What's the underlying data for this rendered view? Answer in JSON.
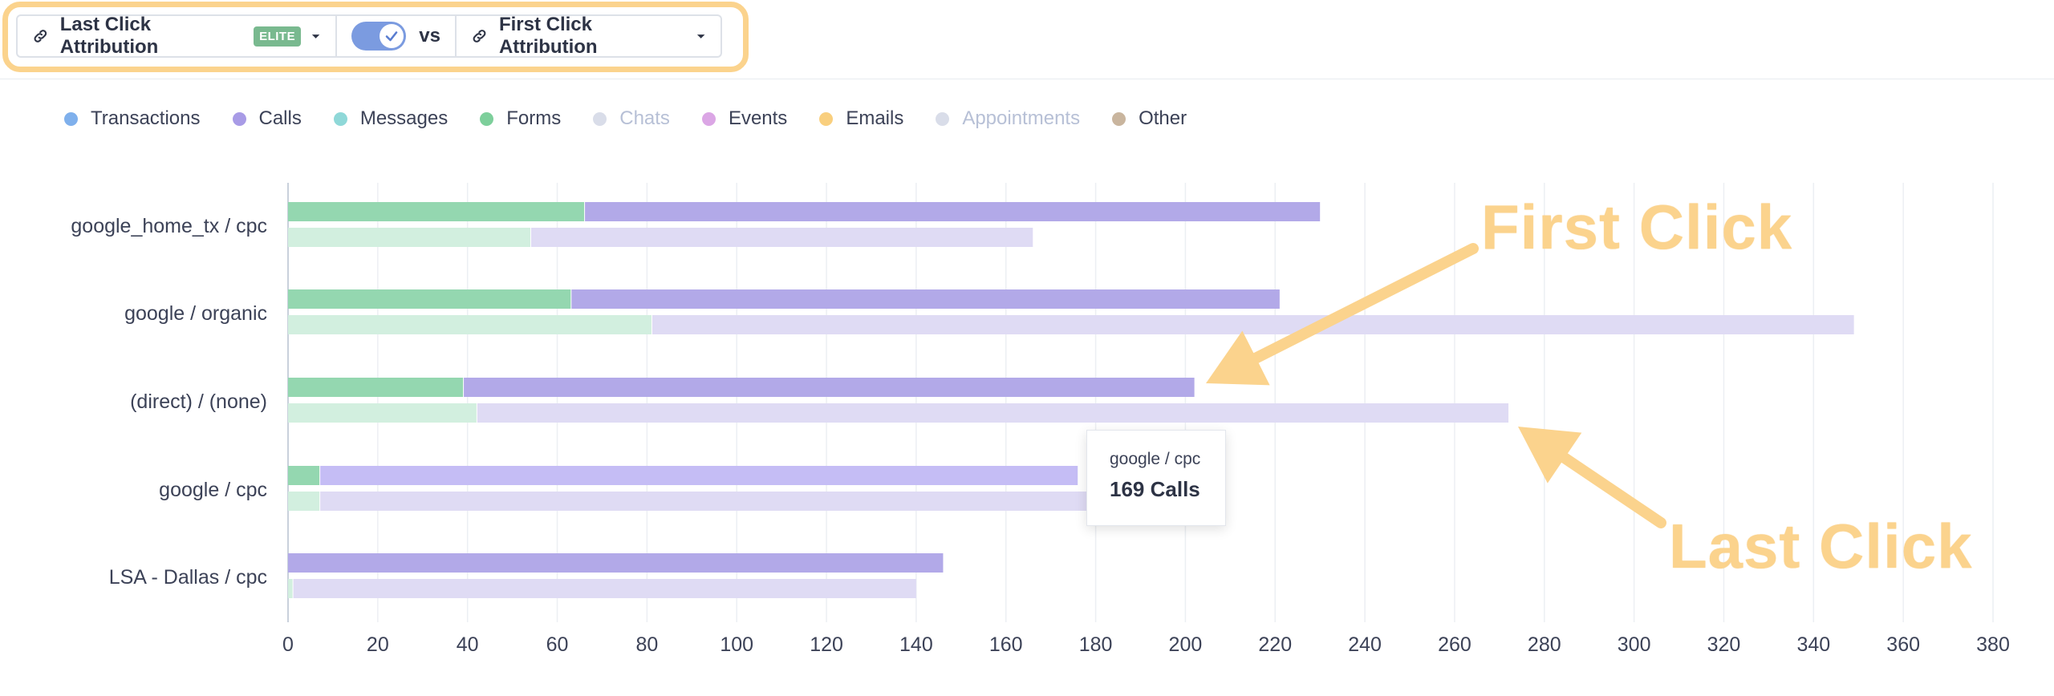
{
  "toolbar": {
    "left_model_label": "Last Click Attribution",
    "elite_badge": "ELITE",
    "vs_label": "vs",
    "right_model_label": "First Click Attribution",
    "toggle_on": true
  },
  "legend": [
    {
      "label": "Transactions",
      "color": "#7fb0ec",
      "active": true
    },
    {
      "label": "Calls",
      "color": "#a89be6",
      "active": true
    },
    {
      "label": "Messages",
      "color": "#8fd8d8",
      "active": true
    },
    {
      "label": "Forms",
      "color": "#7dcf9b",
      "active": true
    },
    {
      "label": "Chats",
      "color": "#d9dde9",
      "active": false
    },
    {
      "label": "Events",
      "color": "#dba6e5",
      "active": true
    },
    {
      "label": "Emails",
      "color": "#f9cf7e",
      "active": true
    },
    {
      "label": "Appointments",
      "color": "#d9dde9",
      "active": false
    },
    {
      "label": "Other",
      "color": "#c9b59e",
      "active": true
    }
  ],
  "chart_data": {
    "type": "bar",
    "orientation": "horizontal",
    "stacked": true,
    "categories": [
      "google_home_tx / cpc",
      "google / organic",
      "(direct) / (none)",
      "google / cpc",
      "LSA - Dallas / cpc"
    ],
    "groups": [
      {
        "name": "Last Click Attribution",
        "series": [
          {
            "name": "Forms",
            "values": [
              66,
              63,
              39,
              7,
              0
            ]
          },
          {
            "name": "Calls",
            "values": [
              164,
              158,
              163,
              169,
              146
            ]
          }
        ]
      },
      {
        "name": "First Click Attribution",
        "series": [
          {
            "name": "Forms",
            "values": [
              54,
              81,
              42,
              7,
              1
            ]
          },
          {
            "name": "Calls",
            "values": [
              112,
              268,
              230,
              176,
              139
            ]
          }
        ]
      }
    ],
    "xlim": [
      0,
      380
    ],
    "xticks": [
      0,
      20,
      40,
      60,
      80,
      100,
      120,
      140,
      160,
      180,
      200,
      220,
      240,
      260,
      280,
      300,
      320,
      340,
      360,
      380
    ],
    "grid": true,
    "colors": {
      "forms_primary": "#94d7b0",
      "calls_primary": "#b2a9e8",
      "calls_hover": "#c5bdf5",
      "forms_secondary": "#d2efdf",
      "calls_secondary": "#dfdbf4"
    }
  },
  "tooltip": {
    "source": "google / cpc",
    "value": "169 Calls"
  },
  "annotations": {
    "first": "First Click",
    "last": "Last Click"
  }
}
